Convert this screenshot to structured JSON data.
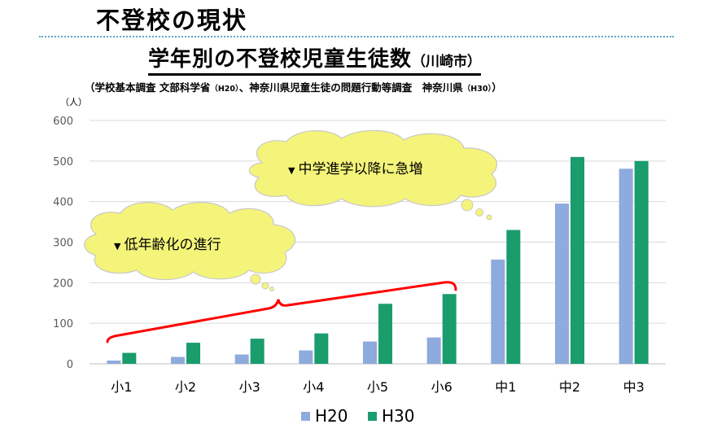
{
  "header": {
    "title": "不登校の現状"
  },
  "chart_data": {
    "type": "bar",
    "title": "学年別の不登校児童生徒数",
    "title_suffix": "（川崎市）",
    "source_prefix": "（学校基本調査 文部科学省",
    "source_year1": "（H20）",
    "source_middle": "、神奈川県児童生徒の問題行動等調査　神奈川県",
    "source_year2": "（H30）",
    "source_suffix": "）",
    "unit_label": "（人）",
    "ylim": [
      0,
      600
    ],
    "yticks": [
      "0",
      "100",
      "200",
      "300",
      "400",
      "500",
      "600"
    ],
    "grid": true,
    "legend_position": "bottom-center",
    "categories": [
      "小1",
      "小2",
      "小3",
      "小4",
      "小5",
      "小6",
      "中1",
      "中2",
      "中3"
    ],
    "series": [
      {
        "name": "H20",
        "color": "#8faadc",
        "values": [
          8,
          17,
          23,
          33,
          55,
          65,
          257,
          395,
          481
        ]
      },
      {
        "name": "H30",
        "color": "#1a9c6c",
        "values": [
          27,
          52,
          62,
          75,
          148,
          172,
          330,
          510,
          500
        ]
      }
    ],
    "annotations": [
      {
        "label": "低年齢化の進行",
        "marker": "▼"
      },
      {
        "label": "中学進学以降に急増",
        "marker": "▼"
      }
    ],
    "callout_color": "#f4f47a",
    "brace_color": "#ff0000"
  }
}
